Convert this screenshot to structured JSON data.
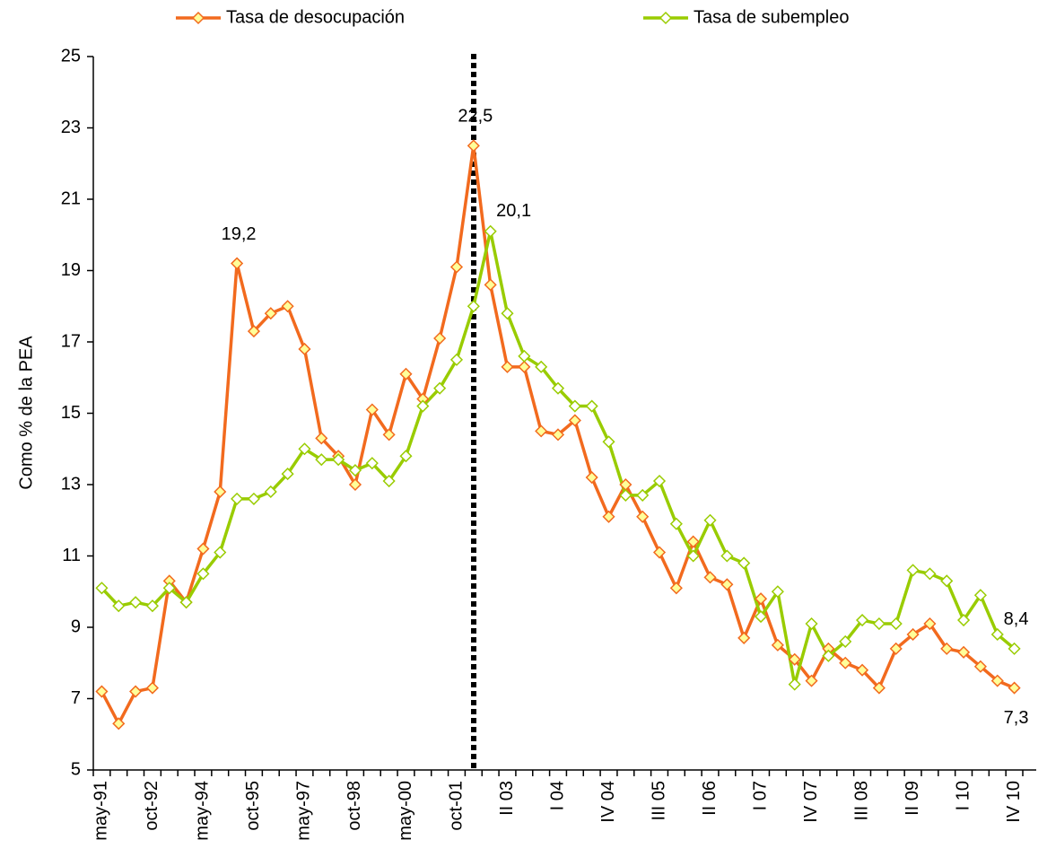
{
  "chart_data": {
    "type": "line",
    "y_label": "Como % de la PEA",
    "categories": [
      "may-91",
      null,
      null,
      "oct-92",
      null,
      null,
      "may-94",
      null,
      null,
      "oct-95",
      null,
      null,
      "may-97",
      null,
      null,
      "oct-98",
      null,
      null,
      "may-00",
      null,
      null,
      "oct-01",
      null,
      null,
      "II 03",
      null,
      null,
      "I 04",
      null,
      null,
      "IV 04",
      null,
      null,
      "III 05",
      null,
      null,
      "II 06",
      null,
      null,
      "I 07",
      null,
      null,
      "IV 07",
      null,
      null,
      "III 08",
      null,
      null,
      "II 09",
      null,
      null,
      "I 10",
      null,
      null,
      "IV 10"
    ],
    "series": [
      {
        "name": "Tasa de desocupación",
        "color": "#f26a1e",
        "marker_fill": "#ffff99",
        "values": [
          7.2,
          6.3,
          7.2,
          7.3,
          10.3,
          9.7,
          11.2,
          12.8,
          19.2,
          17.3,
          17.8,
          18.0,
          16.8,
          14.3,
          13.8,
          13.0,
          15.1,
          14.4,
          16.1,
          15.4,
          17.1,
          19.1,
          22.5,
          18.6,
          16.3,
          16.3,
          14.5,
          14.4,
          14.8,
          13.2,
          12.1,
          13.0,
          12.1,
          11.1,
          10.1,
          11.4,
          10.4,
          10.2,
          8.7,
          9.8,
          8.5,
          8.1,
          7.5,
          8.4,
          8.0,
          7.8,
          7.3,
          8.4,
          8.8,
          9.1,
          8.4,
          8.3,
          7.9,
          7.5,
          7.3
        ],
        "value_labels": [
          null,
          null,
          null,
          null,
          null,
          null,
          null,
          null,
          "19,2",
          null,
          null,
          null,
          null,
          null,
          null,
          null,
          null,
          null,
          null,
          null,
          null,
          null,
          "22,5",
          null,
          null,
          null,
          null,
          null,
          null,
          null,
          null,
          null,
          null,
          null,
          null,
          null,
          null,
          null,
          null,
          null,
          null,
          null,
          null,
          null,
          null,
          null,
          null,
          null,
          null,
          null,
          null,
          null,
          null,
          null,
          "7,3"
        ]
      },
      {
        "name": "Tasa de subempleo",
        "color": "#99cc00",
        "marker_fill": "#ffffff",
        "values": [
          10.1,
          9.6,
          9.7,
          9.6,
          10.1,
          9.7,
          10.5,
          11.1,
          12.6,
          12.6,
          12.8,
          13.3,
          14.0,
          13.7,
          13.7,
          13.4,
          13.6,
          13.1,
          13.8,
          15.2,
          15.7,
          16.5,
          18.0,
          20.1,
          17.8,
          16.6,
          16.3,
          15.7,
          15.2,
          15.2,
          14.2,
          12.7,
          12.7,
          13.1,
          11.9,
          11.0,
          12.0,
          11.0,
          10.8,
          9.3,
          10.0,
          7.4,
          9.1,
          8.2,
          8.6,
          9.2,
          9.1,
          9.1,
          10.6,
          10.5,
          10.3,
          9.2,
          9.9,
          8.8,
          8.4
        ],
        "value_labels": [
          null,
          null,
          null,
          null,
          null,
          null,
          null,
          null,
          null,
          null,
          null,
          null,
          null,
          null,
          null,
          null,
          null,
          null,
          null,
          null,
          null,
          null,
          null,
          "20,1",
          null,
          null,
          null,
          null,
          null,
          null,
          null,
          null,
          null,
          null,
          null,
          null,
          null,
          null,
          null,
          null,
          null,
          null,
          null,
          null,
          null,
          null,
          null,
          null,
          null,
          null,
          null,
          null,
          null,
          null,
          "8,4"
        ]
      }
    ],
    "ylim": [
      5,
      25
    ],
    "yticks": [
      5,
      7,
      9,
      11,
      13,
      15,
      17,
      19,
      21,
      23,
      25
    ]
  }
}
